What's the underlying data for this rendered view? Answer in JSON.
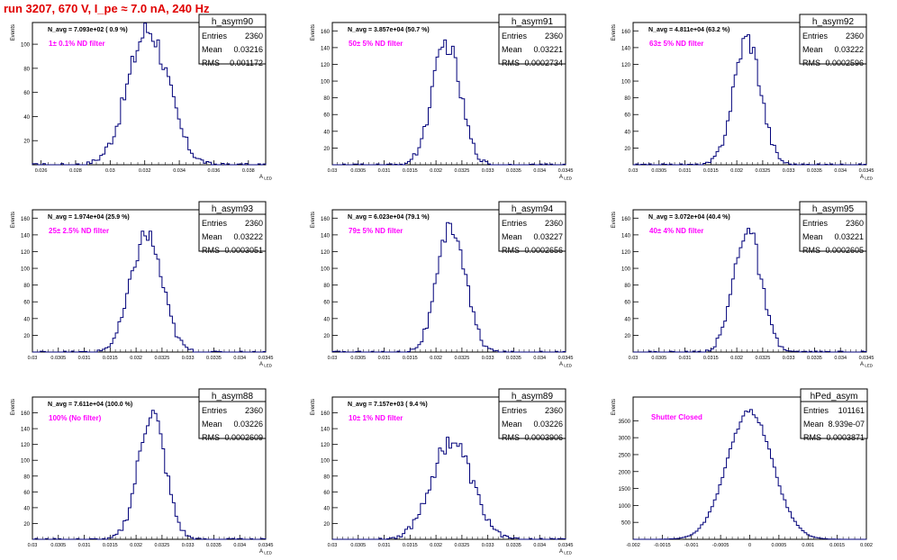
{
  "page": {
    "run_title": "run 3207,   670 V, I_pe ≈ 7.0 nA, 240 Hz"
  },
  "colors": {
    "histogram": "#00007a",
    "annotation": "#ff00ff",
    "title": "#e00000",
    "axis": "#000000"
  },
  "chart_data": [
    {
      "type": "bar",
      "name": "h_asym90",
      "entries": "2360",
      "mean": "0.03216",
      "rms": "0.001172",
      "navg": "N_avg = 7.093e+02 ( 0.9 %)",
      "note": "1± 0.1% ND filter",
      "ylabel": "Events",
      "xlabel": "A_LED",
      "xlim": [
        0.0255,
        0.039
      ],
      "ylim": [
        0,
        118
      ],
      "xticks": [
        "0.026",
        "0.028",
        "0.03",
        "0.032",
        "0.034",
        "0.036",
        "0.038"
      ],
      "yticks": [
        "20",
        "40",
        "60",
        "80",
        "100"
      ],
      "mu": 0.0322,
      "sigma": 0.00117,
      "peak": 112
    },
    {
      "type": "bar",
      "name": "h_asym91",
      "entries": "2360",
      "mean": "0.03221",
      "rms": "0.0002734",
      "navg": "N_avg = 3.857e+04 (50.7 %)",
      "note": "50± 5% ND filter",
      "ylabel": "Events",
      "xlabel": "A_LED",
      "xlim": [
        0.03,
        0.0345
      ],
      "ylim": [
        0,
        170
      ],
      "xticks": [
        "0.03",
        "0.0305",
        "0.031",
        "0.0315",
        "0.032",
        "0.0325",
        "0.033",
        "0.0335",
        "0.034",
        "0.0345"
      ],
      "yticks": [
        "20",
        "40",
        "60",
        "80",
        "100",
        "120",
        "140",
        "160"
      ],
      "mu": 0.0322,
      "sigma": 0.00027,
      "peak": 145
    },
    {
      "type": "bar",
      "name": "h_asym92",
      "entries": "2360",
      "mean": "0.03222",
      "rms": "0.0002596",
      "navg": "N_avg = 4.811e+04 (63.2 %)",
      "note": "63± 5% ND filter",
      "ylabel": "Events",
      "xlabel": "A_LED",
      "xlim": [
        0.03,
        0.0345
      ],
      "ylim": [
        0,
        170
      ],
      "xticks": [
        "0.03",
        "0.0305",
        "0.031",
        "0.0315",
        "0.032",
        "0.0325",
        "0.033",
        "0.0335",
        "0.034",
        "0.0345"
      ],
      "yticks": [
        "20",
        "40",
        "60",
        "80",
        "100",
        "120",
        "140",
        "160"
      ],
      "mu": 0.0322,
      "sigma": 0.00026,
      "peak": 152
    },
    {
      "type": "bar",
      "name": "h_asym93",
      "entries": "2360",
      "mean": "0.03222",
      "rms": "0.0003051",
      "navg": "N_avg = 1.974e+04 (25.9 %)",
      "note": "25± 2.5% ND filter",
      "ylabel": "Events",
      "xlabel": "A_LED",
      "xlim": [
        0.03,
        0.0345
      ],
      "ylim": [
        0,
        170
      ],
      "xticks": [
        "0.03",
        "0.0305",
        "0.031",
        "0.0315",
        "0.032",
        "0.0325",
        "0.033",
        "0.0335",
        "0.034",
        "0.0345"
      ],
      "yticks": [
        "20",
        "40",
        "60",
        "80",
        "100",
        "120",
        "140",
        "160"
      ],
      "mu": 0.0322,
      "sigma": 0.0003,
      "peak": 140
    },
    {
      "type": "bar",
      "name": "h_asym94",
      "entries": "2360",
      "mean": "0.03227",
      "rms": "0.0002656",
      "navg": "N_avg = 6.023e+04 (79.1 %)",
      "note": "79± 5% ND filter",
      "ylabel": "Events",
      "xlabel": "A_LED",
      "xlim": [
        0.03,
        0.0345
      ],
      "ylim": [
        0,
        170
      ],
      "xticks": [
        "0.03",
        "0.0305",
        "0.031",
        "0.0315",
        "0.032",
        "0.0325",
        "0.033",
        "0.0335",
        "0.034",
        "0.0345"
      ],
      "yticks": [
        "20",
        "40",
        "60",
        "80",
        "100",
        "120",
        "140",
        "160"
      ],
      "mu": 0.0323,
      "sigma": 0.00027,
      "peak": 150
    },
    {
      "type": "bar",
      "name": "h_asym95",
      "entries": "2360",
      "mean": "0.03221",
      "rms": "0.0002605",
      "navg": "N_avg = 3.072e+04 (40.4 %)",
      "note": "40± 4% ND filter",
      "ylabel": "Events",
      "xlabel": "A_LED",
      "xlim": [
        0.03,
        0.0345
      ],
      "ylim": [
        0,
        170
      ],
      "xticks": [
        "0.03",
        "0.0305",
        "0.031",
        "0.0315",
        "0.032",
        "0.0325",
        "0.033",
        "0.0335",
        "0.034",
        "0.0345"
      ],
      "yticks": [
        "20",
        "40",
        "60",
        "80",
        "100",
        "120",
        "140",
        "160"
      ],
      "mu": 0.0322,
      "sigma": 0.00026,
      "peak": 148
    },
    {
      "type": "bar",
      "name": "h_asym88",
      "entries": "2360",
      "mean": "0.03226",
      "rms": "0.0002609",
      "navg": "N_avg = 7.611e+04 (100.0 %)",
      "note": "100% (No filter)",
      "ylabel": "Events",
      "xlabel": "A_LED",
      "xlim": [
        0.03,
        0.0345
      ],
      "ylim": [
        0,
        180
      ],
      "xticks": [
        "0.03",
        "0.0305",
        "0.031",
        "0.0315",
        "0.032",
        "0.0325",
        "0.033",
        "0.0335",
        "0.034",
        "0.0345"
      ],
      "yticks": [
        "20",
        "40",
        "60",
        "80",
        "100",
        "120",
        "140",
        "160"
      ],
      "mu": 0.0323,
      "sigma": 0.00026,
      "peak": 160
    },
    {
      "type": "bar",
      "name": "h_asym89",
      "entries": "2360",
      "mean": "0.03226",
      "rms": "0.0003906",
      "navg": "N_avg = 7.157e+03 ( 9.4 %)",
      "note": "10± 1% ND filter",
      "ylabel": "Events",
      "xlabel": "A_LED",
      "xlim": [
        0.03,
        0.0345
      ],
      "ylim": [
        0,
        180
      ],
      "xticks": [
        "0.03",
        "0.0305",
        "0.031",
        "0.0315",
        "0.032",
        "0.0325",
        "0.033",
        "0.0335",
        "0.034",
        "0.0345"
      ],
      "yticks": [
        "20",
        "40",
        "60",
        "80",
        "100",
        "120",
        "140",
        "160"
      ],
      "mu": 0.0323,
      "sigma": 0.00039,
      "peak": 125
    },
    {
      "type": "bar",
      "name": "hPed_asym",
      "entries": "101161",
      "mean": "8.939e-07",
      "rms": "0.0003871",
      "navg": "",
      "note": "Shutter Closed",
      "ylabel": "Events",
      "xlabel": "",
      "xlim": [
        -0.002,
        0.002
      ],
      "ylim": [
        0,
        4200
      ],
      "xticks": [
        "-0.002",
        "-0.0015",
        "-0.001",
        "-0.0005",
        "0",
        "0.0005",
        "0.001",
        "0.0015",
        "0.002"
      ],
      "yticks": [
        "500",
        "1000",
        "1500",
        "2000",
        "2500",
        "3000",
        "3500"
      ],
      "mu": 0.0,
      "sigma": 0.00039,
      "peak": 3780
    }
  ]
}
